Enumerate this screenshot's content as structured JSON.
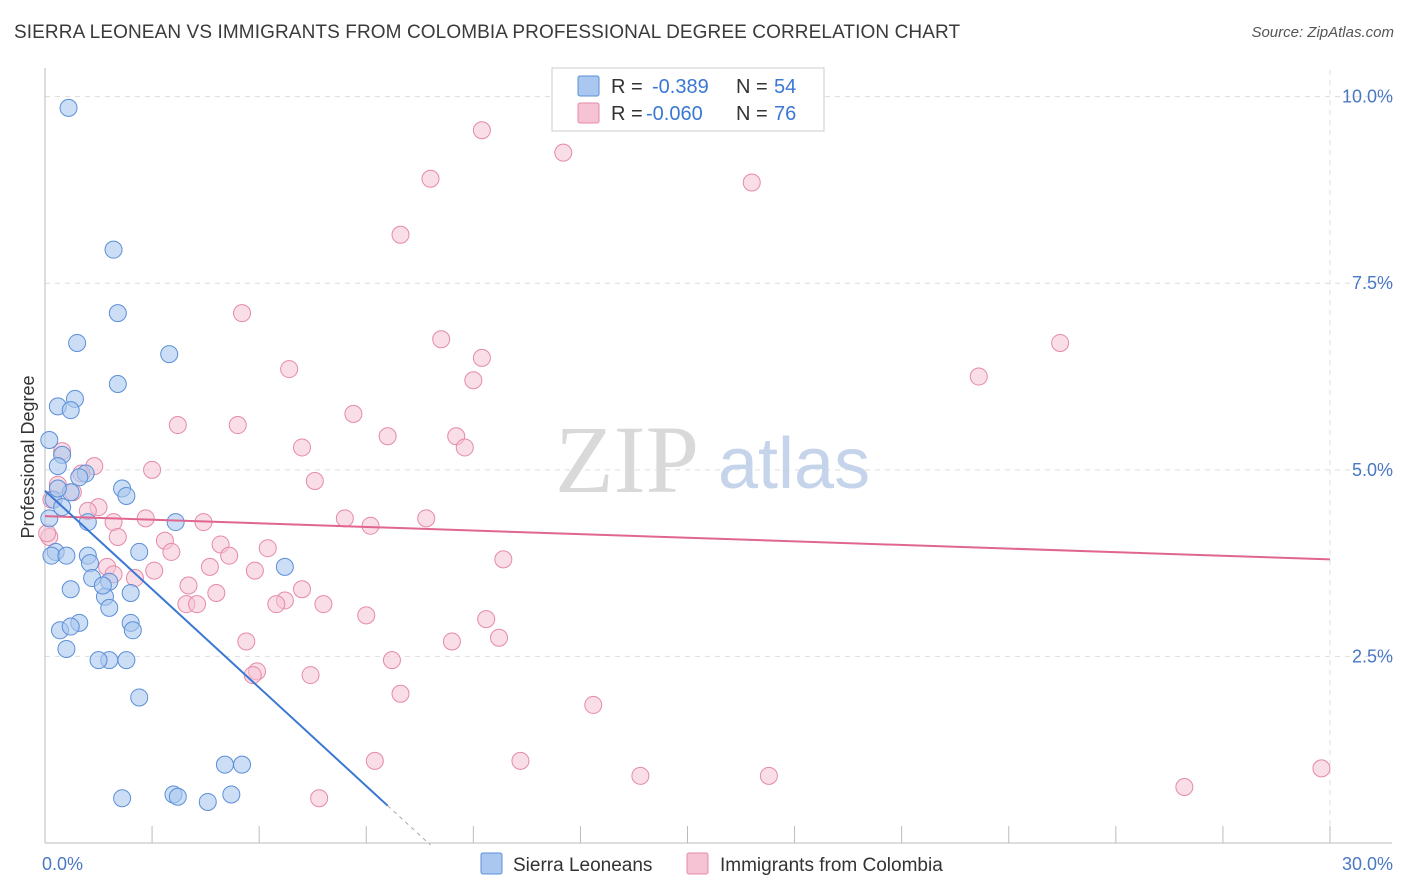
{
  "title": "SIERRA LEONEAN VS IMMIGRANTS FROM COLOMBIA PROFESSIONAL DEGREE CORRELATION CHART",
  "source": "Source: ZipAtlas.com",
  "watermark": {
    "zip": "ZIP",
    "atlas": "atlas"
  },
  "colors": {
    "blue_fill": "#aac8ef",
    "blue_stroke": "#5b8fd8",
    "blue_line": "#3a78d4",
    "pink_fill": "#f6c3d4",
    "pink_stroke": "#e58aa8",
    "pink_line": "#e06690",
    "tick": "#4a78c4",
    "grid": "#dddddd"
  },
  "legend": {
    "rows": [
      {
        "r_label": "R =",
        "r_value": "-0.389",
        "n_label": "N =",
        "n_value": "54"
      },
      {
        "r_label": "R =",
        "r_value": "-0.060",
        "n_label": "N =",
        "n_value": "76"
      }
    ]
  },
  "bottom_legend": [
    "Sierra Leoneans",
    "Immigrants from Colombia"
  ],
  "chart_data": {
    "type": "scatter",
    "title": "SIERRA LEONEAN VS IMMIGRANTS FROM COLOMBIA PROFESSIONAL DEGREE CORRELATION CHART",
    "xlabel": "",
    "ylabel": "Professional Degree",
    "xlim": [
      0,
      30
    ],
    "ylim": [
      0,
      10.25
    ],
    "x_tick_labels": [
      {
        "value": 0,
        "label": "0.0%"
      },
      {
        "value": 30,
        "label": "30.0%"
      }
    ],
    "y_tick_labels": [
      {
        "value": 2.5,
        "label": "2.5%"
      },
      {
        "value": 5.0,
        "label": "5.0%"
      },
      {
        "value": 7.5,
        "label": "7.5%"
      },
      {
        "value": 10.0,
        "label": "10.0%"
      }
    ],
    "series": [
      {
        "name": "Sierra Leoneans",
        "R": -0.389,
        "N": 54,
        "trend": {
          "x0": 0,
          "y0": 4.72,
          "x1": 8.0,
          "y1": 0.5,
          "dash_to_x": 9.0
        },
        "points": [
          [
            0.55,
            9.85
          ],
          [
            1.6,
            7.95
          ],
          [
            1.7,
            7.1
          ],
          [
            0.75,
            6.7
          ],
          [
            2.9,
            6.55
          ],
          [
            1.7,
            6.15
          ],
          [
            0.7,
            5.95
          ],
          [
            0.3,
            5.85
          ],
          [
            0.6,
            5.8
          ],
          [
            0.1,
            5.4
          ],
          [
            0.4,
            5.2
          ],
          [
            0.3,
            5.05
          ],
          [
            0.95,
            4.95
          ],
          [
            1.8,
            4.75
          ],
          [
            0.6,
            4.7
          ],
          [
            0.2,
            4.6
          ],
          [
            0.4,
            4.5
          ],
          [
            1.9,
            4.65
          ],
          [
            3.05,
            4.3
          ],
          [
            1.0,
            4.3
          ],
          [
            0.25,
            3.9
          ],
          [
            0.15,
            3.85
          ],
          [
            0.5,
            3.85
          ],
          [
            1.0,
            3.85
          ],
          [
            1.05,
            3.75
          ],
          [
            5.6,
            3.7
          ],
          [
            1.5,
            3.5
          ],
          [
            1.1,
            3.55
          ],
          [
            0.6,
            3.4
          ],
          [
            2.0,
            3.35
          ],
          [
            1.4,
            3.3
          ],
          [
            1.5,
            3.15
          ],
          [
            0.8,
            2.95
          ],
          [
            2.0,
            2.95
          ],
          [
            0.35,
            2.85
          ],
          [
            0.6,
            2.9
          ],
          [
            2.05,
            2.85
          ],
          [
            0.5,
            2.6
          ],
          [
            1.5,
            2.45
          ],
          [
            1.25,
            2.45
          ],
          [
            1.9,
            2.45
          ],
          [
            2.2,
            1.95
          ],
          [
            4.2,
            1.05
          ],
          [
            4.6,
            1.05
          ],
          [
            1.8,
            0.6
          ],
          [
            3.0,
            0.65
          ],
          [
            3.1,
            0.62
          ],
          [
            3.8,
            0.55
          ],
          [
            4.35,
            0.65
          ],
          [
            0.1,
            4.35
          ],
          [
            0.8,
            4.9
          ],
          [
            0.3,
            4.75
          ],
          [
            1.35,
            3.45
          ],
          [
            2.2,
            3.9
          ]
        ]
      },
      {
        "name": "Immigrants from Colombia",
        "R": -0.06,
        "N": 76,
        "trend": {
          "x0": 0,
          "y0": 4.38,
          "x1": 30,
          "y1": 3.8
        },
        "points": [
          [
            10.2,
            9.55
          ],
          [
            12.1,
            9.25
          ],
          [
            9.0,
            8.9
          ],
          [
            16.5,
            8.85
          ],
          [
            8.3,
            8.15
          ],
          [
            4.6,
            7.1
          ],
          [
            23.7,
            6.7
          ],
          [
            9.25,
            6.75
          ],
          [
            10.2,
            6.5
          ],
          [
            5.7,
            6.35
          ],
          [
            21.8,
            6.25
          ],
          [
            10.0,
            6.2
          ],
          [
            7.2,
            5.75
          ],
          [
            3.1,
            5.6
          ],
          [
            4.5,
            5.6
          ],
          [
            8.0,
            5.45
          ],
          [
            9.6,
            5.45
          ],
          [
            6.0,
            5.3
          ],
          [
            9.8,
            5.3
          ],
          [
            0.4,
            5.25
          ],
          [
            1.15,
            5.05
          ],
          [
            2.5,
            5.0
          ],
          [
            0.85,
            4.95
          ],
          [
            6.3,
            4.85
          ],
          [
            0.3,
            4.8
          ],
          [
            0.65,
            4.7
          ],
          [
            0.15,
            4.6
          ],
          [
            1.25,
            4.5
          ],
          [
            1.0,
            4.45
          ],
          [
            7.0,
            4.35
          ],
          [
            8.9,
            4.35
          ],
          [
            2.35,
            4.35
          ],
          [
            3.7,
            4.3
          ],
          [
            1.6,
            4.3
          ],
          [
            7.6,
            4.25
          ],
          [
            0.1,
            4.1
          ],
          [
            1.7,
            4.1
          ],
          [
            2.8,
            4.05
          ],
          [
            4.1,
            4.0
          ],
          [
            5.2,
            3.95
          ],
          [
            2.95,
            3.9
          ],
          [
            4.3,
            3.85
          ],
          [
            10.7,
            3.8
          ],
          [
            1.45,
            3.7
          ],
          [
            3.85,
            3.7
          ],
          [
            4.9,
            3.65
          ],
          [
            2.55,
            3.65
          ],
          [
            2.1,
            3.55
          ],
          [
            3.35,
            3.45
          ],
          [
            6.0,
            3.4
          ],
          [
            4.0,
            3.35
          ],
          [
            5.6,
            3.25
          ],
          [
            5.4,
            3.2
          ],
          [
            6.5,
            3.2
          ],
          [
            3.3,
            3.2
          ],
          [
            3.55,
            3.2
          ],
          [
            7.5,
            3.05
          ],
          [
            10.3,
            3.0
          ],
          [
            10.6,
            2.75
          ],
          [
            9.5,
            2.7
          ],
          [
            4.7,
            2.7
          ],
          [
            8.1,
            2.45
          ],
          [
            4.95,
            2.3
          ],
          [
            6.2,
            2.25
          ],
          [
            4.85,
            2.25
          ],
          [
            8.3,
            2.0
          ],
          [
            12.8,
            1.85
          ],
          [
            7.7,
            1.1
          ],
          [
            11.1,
            1.1
          ],
          [
            13.9,
            0.9
          ],
          [
            16.9,
            0.9
          ],
          [
            26.6,
            0.75
          ],
          [
            29.8,
            1.0
          ],
          [
            6.4,
            0.6
          ],
          [
            0.05,
            4.15
          ],
          [
            1.6,
            3.6
          ]
        ]
      }
    ]
  }
}
